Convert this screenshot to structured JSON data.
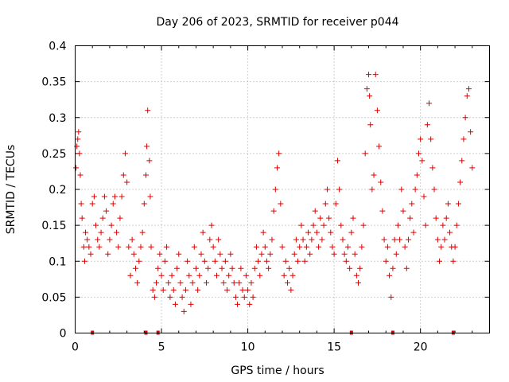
{
  "chart_data": {
    "type": "scatter",
    "title": "Day 206 of 2023, SRMTID for receiver p044",
    "xlabel": "GPS time / hours",
    "ylabel": "SRMTID / TECUs",
    "xlim": [
      0,
      24
    ],
    "ylim": [
      0,
      0.4
    ],
    "xticks": [
      0,
      5,
      10,
      15,
      20
    ],
    "xtick_labels": [
      "0",
      "5",
      "10",
      "15",
      "20"
    ],
    "yticks": [
      0,
      0.05,
      0.1,
      0.15,
      0.2,
      0.25,
      0.3,
      0.35,
      0.4
    ],
    "ytick_labels": [
      "0",
      "0.05",
      "0.1",
      "0.15",
      "0.2",
      "0.25",
      "0.3",
      "0.35",
      "0.4"
    ],
    "grid": true,
    "marker": "plus",
    "color": "#e00000",
    "series": [
      {
        "name": "SRMTID",
        "points": [
          [
            0.05,
            0.23
          ],
          [
            0.1,
            0.26
          ],
          [
            0.15,
            0.27
          ],
          [
            0.2,
            0.28
          ],
          [
            0.25,
            0.25
          ],
          [
            0.3,
            0.22
          ],
          [
            0.35,
            0.18
          ],
          [
            0.4,
            0.16
          ],
          [
            0.5,
            0.12
          ],
          [
            0.55,
            0.1
          ],
          [
            0.6,
            0.14
          ],
          [
            0.7,
            0.13
          ],
          [
            0.8,
            0.12
          ],
          [
            0.9,
            0.11
          ],
          [
            1.0,
            0.18
          ],
          [
            1.1,
            0.19
          ],
          [
            1.2,
            0.15
          ],
          [
            1.3,
            0.13
          ],
          [
            1.4,
            0.12
          ],
          [
            1.5,
            0.14
          ],
          [
            1.6,
            0.16
          ],
          [
            1.7,
            0.19
          ],
          [
            1.8,
            0.17
          ],
          [
            1.9,
            0.11
          ],
          [
            2.0,
            0.13
          ],
          [
            2.1,
            0.15
          ],
          [
            2.2,
            0.18
          ],
          [
            2.3,
            0.19
          ],
          [
            2.4,
            0.14
          ],
          [
            2.5,
            0.12
          ],
          [
            2.6,
            0.16
          ],
          [
            2.7,
            0.19
          ],
          [
            2.8,
            0.22
          ],
          [
            2.9,
            0.25
          ],
          [
            3.0,
            0.21
          ],
          [
            3.1,
            0.12
          ],
          [
            3.2,
            0.08
          ],
          [
            3.3,
            0.13
          ],
          [
            3.4,
            0.11
          ],
          [
            3.5,
            0.09
          ],
          [
            3.6,
            0.07
          ],
          [
            3.7,
            0.1
          ],
          [
            3.8,
            0.12
          ],
          [
            3.9,
            0.14
          ],
          [
            4.0,
            0.18
          ],
          [
            4.1,
            0.22
          ],
          [
            4.15,
            0.26
          ],
          [
            4.2,
            0.31
          ],
          [
            4.3,
            0.24
          ],
          [
            4.35,
            0.19
          ],
          [
            4.4,
            0.12
          ],
          [
            4.5,
            0.06
          ],
          [
            4.6,
            0.05
          ],
          [
            4.7,
            0.07
          ],
          [
            4.8,
            0.09
          ],
          [
            4.9,
            0.11
          ],
          [
            5.0,
            0.08
          ],
          [
            5.1,
            0.06
          ],
          [
            5.2,
            0.1
          ],
          [
            5.3,
            0.12
          ],
          [
            5.4,
            0.07
          ],
          [
            5.5,
            0.05
          ],
          [
            5.6,
            0.08
          ],
          [
            5.7,
            0.06
          ],
          [
            5.8,
            0.04
          ],
          [
            5.9,
            0.09
          ],
          [
            6.0,
            0.11
          ],
          [
            6.1,
            0.07
          ],
          [
            6.2,
            0.05
          ],
          [
            6.3,
            0.03
          ],
          [
            6.4,
            0.06
          ],
          [
            6.5,
            0.1
          ],
          [
            6.6,
            0.08
          ],
          [
            6.7,
            0.04
          ],
          [
            6.8,
            0.07
          ],
          [
            6.9,
            0.12
          ],
          [
            7.0,
            0.09
          ],
          [
            7.1,
            0.06
          ],
          [
            7.2,
            0.08
          ],
          [
            7.3,
            0.11
          ],
          [
            7.4,
            0.14
          ],
          [
            7.5,
            0.1
          ],
          [
            7.6,
            0.07
          ],
          [
            7.7,
            0.09
          ],
          [
            7.8,
            0.13
          ],
          [
            7.9,
            0.15
          ],
          [
            8.0,
            0.12
          ],
          [
            8.1,
            0.1
          ],
          [
            8.2,
            0.08
          ],
          [
            8.3,
            0.13
          ],
          [
            8.4,
            0.11
          ],
          [
            8.5,
            0.09
          ],
          [
            8.6,
            0.07
          ],
          [
            8.7,
            0.1
          ],
          [
            8.8,
            0.06
          ],
          [
            8.9,
            0.08
          ],
          [
            9.0,
            0.11
          ],
          [
            9.1,
            0.09
          ],
          [
            9.2,
            0.07
          ],
          [
            9.3,
            0.05
          ],
          [
            9.4,
            0.04
          ],
          [
            9.5,
            0.07
          ],
          [
            9.6,
            0.09
          ],
          [
            9.7,
            0.06
          ],
          [
            9.8,
            0.05
          ],
          [
            9.9,
            0.08
          ],
          [
            10.0,
            0.06
          ],
          [
            10.1,
            0.04
          ],
          [
            10.2,
            0.07
          ],
          [
            10.3,
            0.05
          ],
          [
            10.4,
            0.09
          ],
          [
            10.5,
            0.12
          ],
          [
            10.6,
            0.1
          ],
          [
            10.7,
            0.08
          ],
          [
            10.8,
            0.11
          ],
          [
            10.9,
            0.14
          ],
          [
            11.0,
            0.12
          ],
          [
            11.1,
            0.1
          ],
          [
            11.2,
            0.09
          ],
          [
            11.3,
            0.11
          ],
          [
            11.4,
            0.13
          ],
          [
            11.5,
            0.17
          ],
          [
            11.6,
            0.2
          ],
          [
            11.7,
            0.23
          ],
          [
            11.8,
            0.25
          ],
          [
            11.9,
            0.18
          ],
          [
            12.0,
            0.12
          ],
          [
            12.1,
            0.08
          ],
          [
            12.2,
            0.1
          ],
          [
            12.3,
            0.07
          ],
          [
            12.4,
            0.09
          ],
          [
            12.5,
            0.06
          ],
          [
            12.6,
            0.08
          ],
          [
            12.7,
            0.11
          ],
          [
            12.8,
            0.13
          ],
          [
            12.9,
            0.1
          ],
          [
            13.0,
            0.12
          ],
          [
            13.1,
            0.15
          ],
          [
            13.2,
            0.13
          ],
          [
            13.3,
            0.1
          ],
          [
            13.4,
            0.12
          ],
          [
            13.5,
            0.14
          ],
          [
            13.6,
            0.11
          ],
          [
            13.7,
            0.13
          ],
          [
            13.8,
            0.15
          ],
          [
            13.9,
            0.17
          ],
          [
            14.0,
            0.14
          ],
          [
            14.1,
            0.12
          ],
          [
            14.2,
            0.16
          ],
          [
            14.3,
            0.13
          ],
          [
            14.4,
            0.15
          ],
          [
            14.5,
            0.18
          ],
          [
            14.6,
            0.2
          ],
          [
            14.7,
            0.16
          ],
          [
            14.8,
            0.14
          ],
          [
            14.9,
            0.12
          ],
          [
            15.0,
            0.11
          ],
          [
            15.1,
            0.18
          ],
          [
            15.2,
            0.24
          ],
          [
            15.3,
            0.2
          ],
          [
            15.4,
            0.15
          ],
          [
            15.5,
            0.13
          ],
          [
            15.6,
            0.11
          ],
          [
            15.7,
            0.1
          ],
          [
            15.8,
            0.12
          ],
          [
            15.9,
            0.09
          ],
          [
            16.0,
            0.14
          ],
          [
            16.1,
            0.16
          ],
          [
            16.2,
            0.11
          ],
          [
            16.3,
            0.08
          ],
          [
            16.4,
            0.07
          ],
          [
            16.5,
            0.09
          ],
          [
            16.6,
            0.12
          ],
          [
            16.7,
            0.15
          ],
          [
            16.8,
            0.25
          ],
          [
            16.9,
            0.34
          ],
          [
            17.0,
            0.36
          ],
          [
            17.05,
            0.33
          ],
          [
            17.1,
            0.29
          ],
          [
            17.2,
            0.2
          ],
          [
            17.3,
            0.22
          ],
          [
            17.4,
            0.36
          ],
          [
            17.5,
            0.31
          ],
          [
            17.6,
            0.26
          ],
          [
            17.7,
            0.21
          ],
          [
            17.8,
            0.17
          ],
          [
            17.9,
            0.13
          ],
          [
            18.0,
            0.1
          ],
          [
            18.1,
            0.12
          ],
          [
            18.2,
            0.08
          ],
          [
            18.3,
            0.05
          ],
          [
            18.4,
            0.09
          ],
          [
            18.5,
            0.13
          ],
          [
            18.6,
            0.11
          ],
          [
            18.7,
            0.15
          ],
          [
            18.8,
            0.13
          ],
          [
            18.9,
            0.2
          ],
          [
            19.0,
            0.17
          ],
          [
            19.1,
            0.12
          ],
          [
            19.2,
            0.09
          ],
          [
            19.3,
            0.13
          ],
          [
            19.4,
            0.16
          ],
          [
            19.5,
            0.18
          ],
          [
            19.6,
            0.14
          ],
          [
            19.7,
            0.2
          ],
          [
            19.8,
            0.22
          ],
          [
            19.9,
            0.25
          ],
          [
            20.0,
            0.27
          ],
          [
            20.1,
            0.24
          ],
          [
            20.2,
            0.19
          ],
          [
            20.3,
            0.15
          ],
          [
            20.4,
            0.29
          ],
          [
            20.5,
            0.32
          ],
          [
            20.6,
            0.27
          ],
          [
            20.7,
            0.23
          ],
          [
            20.8,
            0.2
          ],
          [
            20.9,
            0.16
          ],
          [
            21.0,
            0.13
          ],
          [
            21.1,
            0.1
          ],
          [
            21.2,
            0.12
          ],
          [
            21.3,
            0.15
          ],
          [
            21.4,
            0.13
          ],
          [
            21.5,
            0.16
          ],
          [
            21.6,
            0.18
          ],
          [
            21.7,
            0.14
          ],
          [
            21.8,
            0.12
          ],
          [
            21.9,
            0.1
          ],
          [
            22.0,
            0.12
          ],
          [
            22.1,
            0.15
          ],
          [
            22.2,
            0.18
          ],
          [
            22.3,
            0.21
          ],
          [
            22.4,
            0.24
          ],
          [
            22.5,
            0.27
          ],
          [
            22.6,
            0.3
          ],
          [
            22.7,
            0.33
          ],
          [
            22.8,
            0.34
          ],
          [
            22.9,
            0.28
          ],
          [
            23.0,
            0.23
          ]
        ]
      }
    ],
    "baseline_markers_x": [
      1.0,
      4.1,
      4.8,
      16.0,
      18.4,
      21.9
    ]
  }
}
